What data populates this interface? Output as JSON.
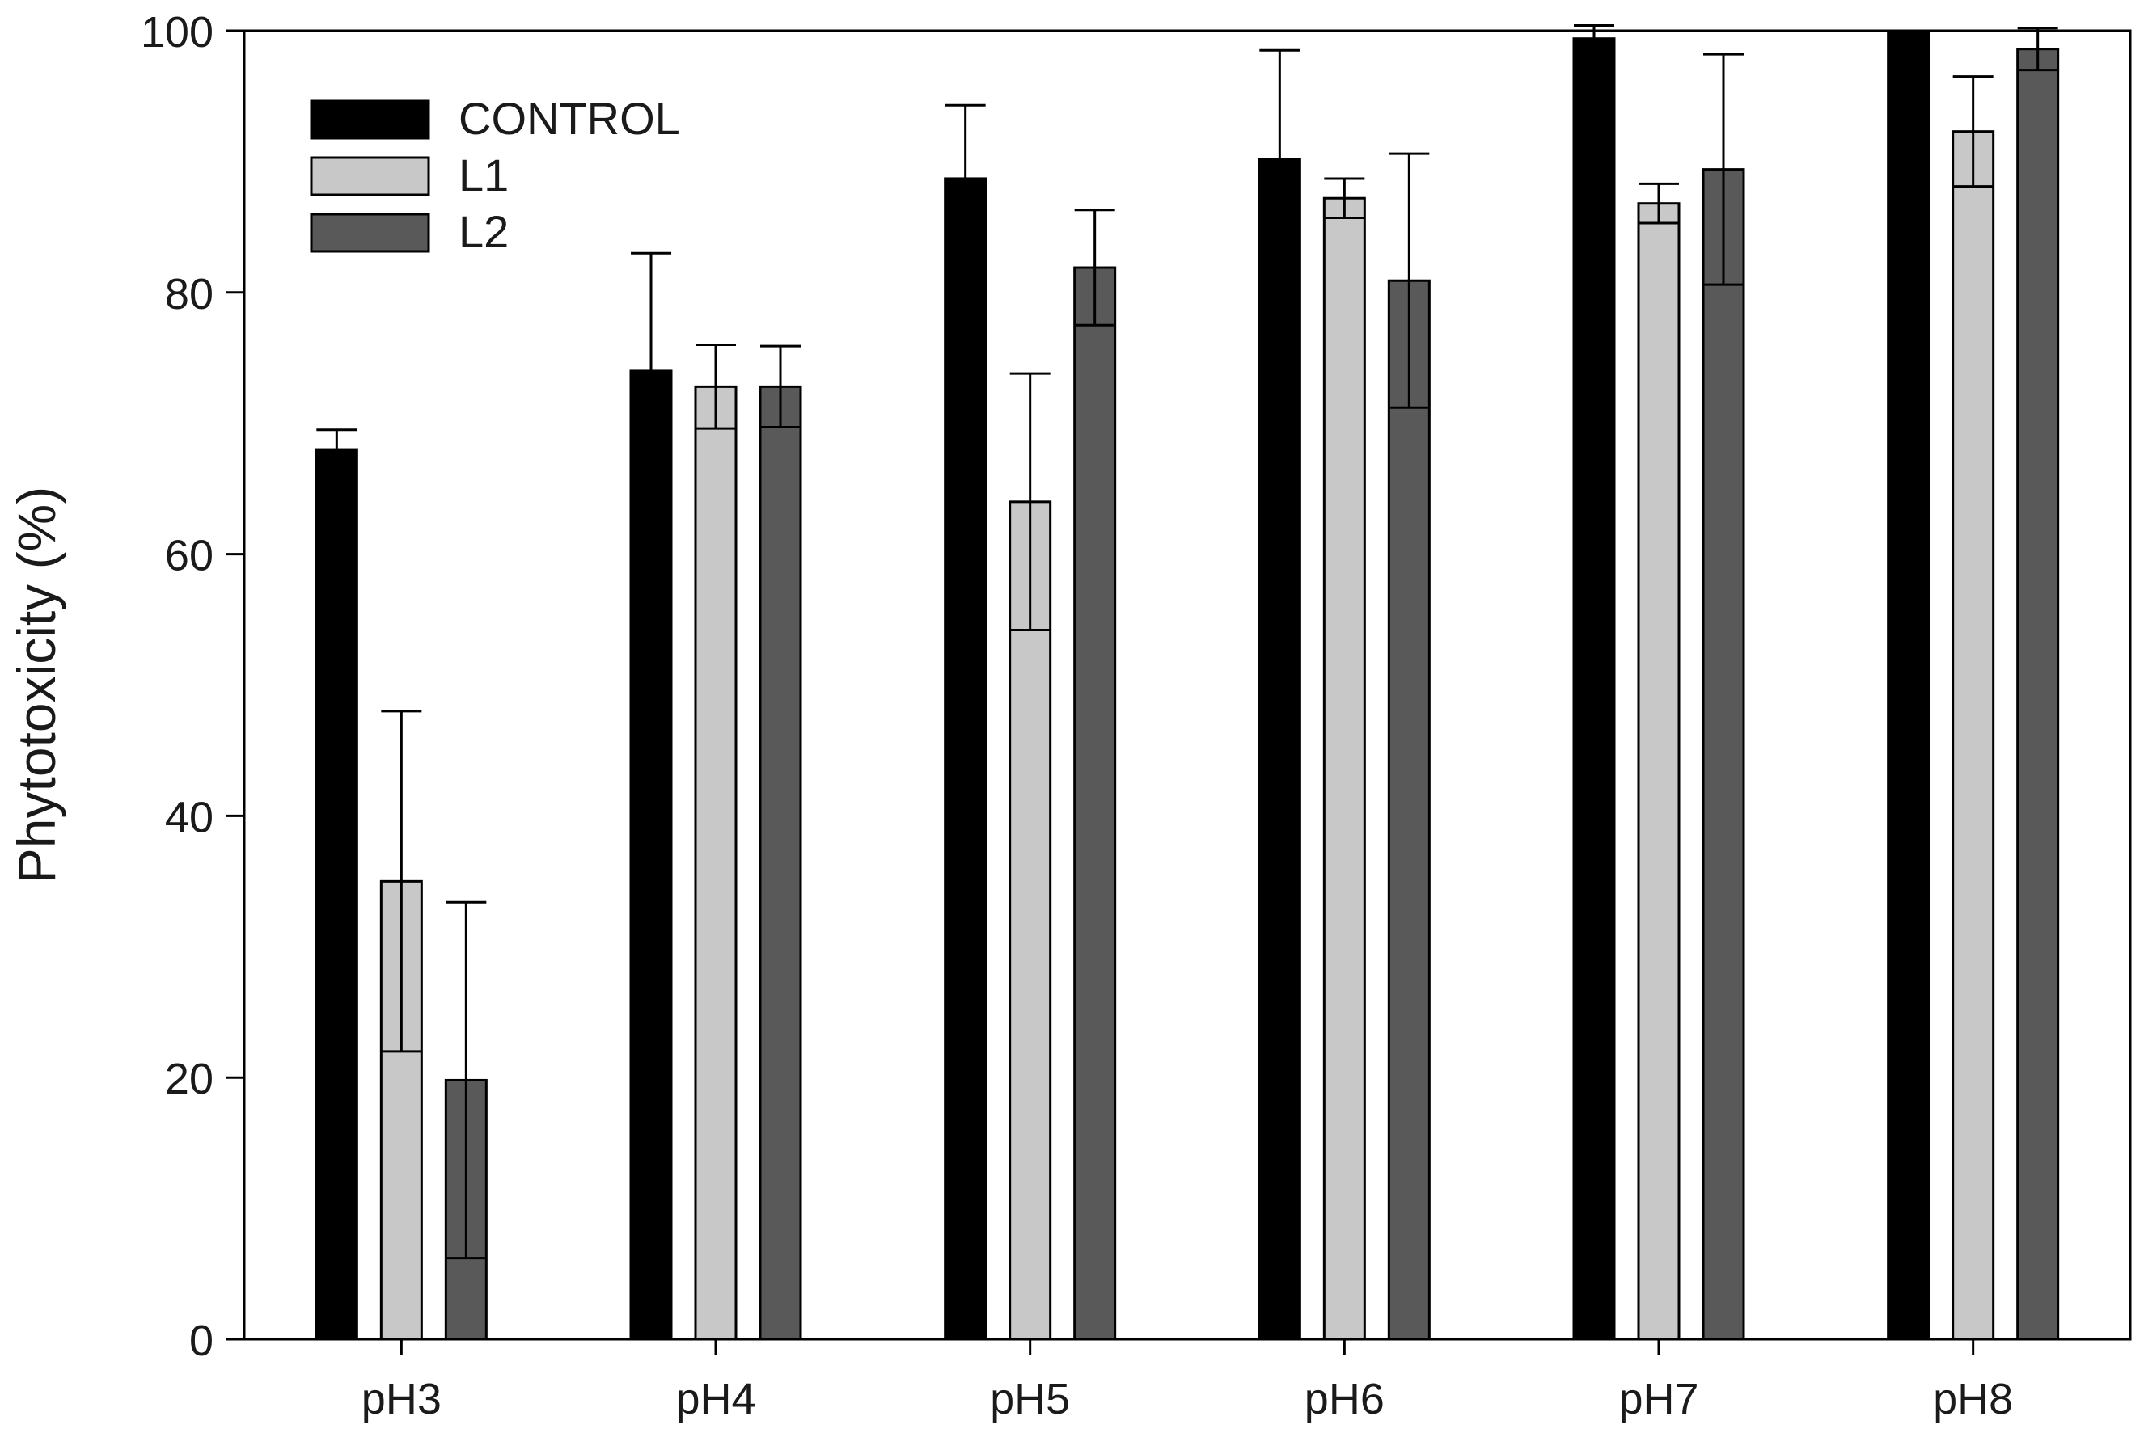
{
  "chart_data": {
    "type": "bar",
    "title": "",
    "xlabel": "",
    "ylabel": "Phytotoxicity (%)",
    "ylim": [
      0,
      100
    ],
    "yticks": [
      "0",
      "20",
      "40",
      "60",
      "80",
      "100"
    ],
    "grid": false,
    "legend_position": "top-left",
    "categories": [
      "pH3",
      "pH4",
      "pH5",
      "pH6",
      "pH7",
      "pH8"
    ],
    "series": [
      {
        "name": "CONTROL",
        "color": "#000000",
        "values": [
          68,
          74,
          88.7,
          90.2,
          99.4,
          100
        ],
        "errors": [
          1.5,
          9,
          5.6,
          8.3,
          1,
          0
        ]
      },
      {
        "name": "L1",
        "color": "#c8c8c8",
        "values": [
          35,
          72.8,
          64,
          87.2,
          86.8,
          92.3
        ],
        "errors": [
          13,
          3.2,
          9.8,
          1.5,
          1.5,
          4.2
        ]
      },
      {
        "name": "L2",
        "color": "#595959",
        "values": [
          19.8,
          72.8,
          81.9,
          80.9,
          89.4,
          98.6
        ],
        "errors": [
          13.6,
          3.1,
          4.4,
          9.7,
          8.8,
          1.6
        ]
      }
    ]
  }
}
